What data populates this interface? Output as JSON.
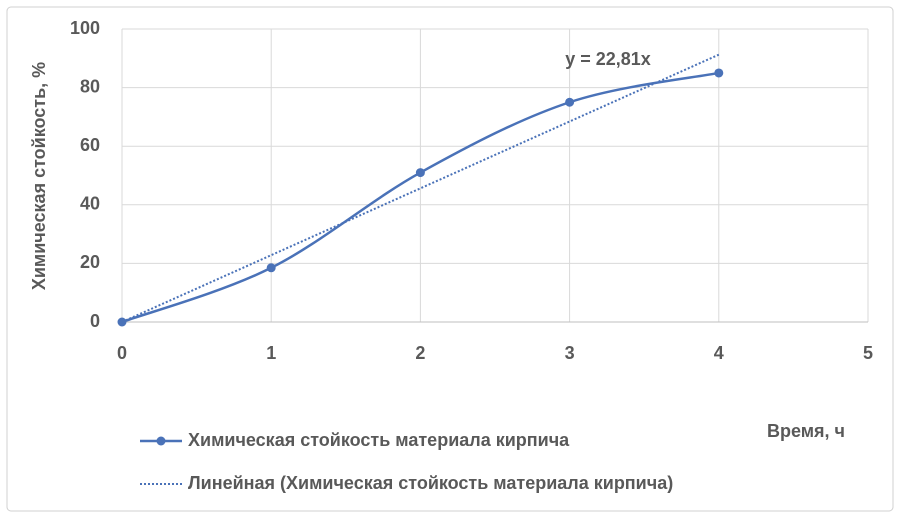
{
  "chart_data": {
    "type": "line",
    "x": [
      0,
      1,
      2,
      3,
      4
    ],
    "series": [
      {
        "name": "Химическая стойкость материала кирпича",
        "color": "#4a72b8",
        "style": "solid",
        "markers": true,
        "smooth": true,
        "values": [
          0,
          18.5,
          51,
          75,
          85
        ]
      },
      {
        "name": "Линейная (Химическая стойкость материала кирпича)",
        "color": "#4a72b8",
        "style": "dotted",
        "markers": false,
        "smooth": false,
        "values": [
          0,
          22.81,
          45.62,
          68.43,
          91.24
        ]
      }
    ],
    "annotation": "y = 22,81x",
    "xlabel": "Время, ч",
    "ylabel": "Химическая стойкость, %",
    "xlim": [
      0,
      5
    ],
    "xticks": [
      0,
      1,
      2,
      3,
      4,
      5
    ],
    "ylim": [
      0,
      100
    ],
    "yticks": [
      0,
      20,
      40,
      60,
      80,
      100
    ],
    "grid": true,
    "legend": "bottom-left"
  }
}
